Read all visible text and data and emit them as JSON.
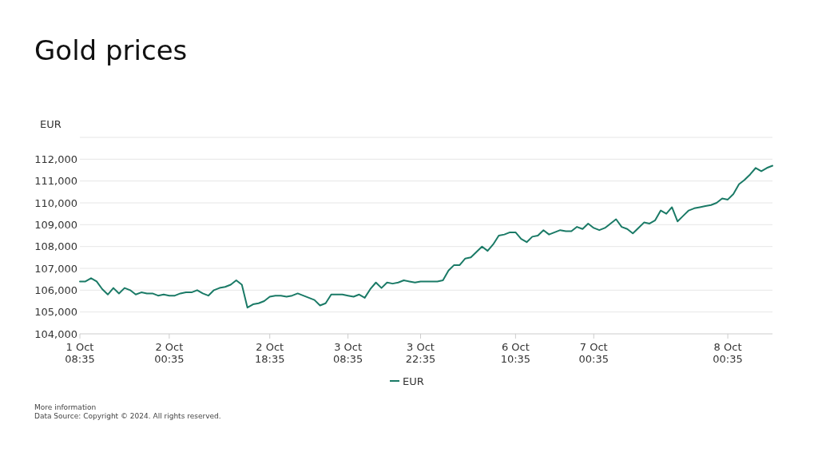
{
  "chart_data": {
    "type": "line",
    "title": "Gold prices",
    "ylabel": "EUR",
    "categories": [
      "1 Oct\n08:35",
      null,
      null,
      null,
      null,
      null,
      null,
      null,
      null,
      null,
      null,
      null,
      null,
      null,
      null,
      null,
      "2 Oct\n00:35",
      null,
      null,
      null,
      null,
      null,
      null,
      null,
      null,
      null,
      null,
      null,
      null,
      null,
      null,
      null,
      null,
      null,
      "2 Oct\n18:35",
      null,
      null,
      null,
      null,
      null,
      null,
      null,
      null,
      null,
      null,
      null,
      null,
      null,
      "3 Oct\n08:35",
      null,
      null,
      null,
      null,
      null,
      null,
      null,
      null,
      null,
      null,
      null,
      null,
      "3 Oct\n22:35",
      null,
      null,
      null,
      null,
      null,
      null,
      null,
      null,
      null,
      null,
      null,
      null,
      null,
      null,
      null,
      null,
      "6 Oct\n10:35",
      null,
      null,
      null,
      null,
      null,
      null,
      null,
      null,
      null,
      null,
      null,
      null,
      null,
      "7 Oct\n00:35",
      null,
      null,
      null,
      null,
      null,
      null,
      null,
      null,
      null,
      null,
      null,
      null,
      null,
      null,
      null,
      null,
      null,
      null,
      null,
      null,
      null,
      null,
      null,
      "8 Oct\n00:35",
      null,
      null,
      null,
      null,
      null,
      null,
      null,
      null
    ],
    "ylim": [
      104000,
      113000
    ],
    "yticks": [
      {
        "value": 104000,
        "label": "104,000"
      },
      {
        "value": 105000,
        "label": "105,000"
      },
      {
        "value": 106000,
        "label": "106,000"
      },
      {
        "value": 107000,
        "label": "107,000"
      },
      {
        "value": 108000,
        "label": "108,000"
      },
      {
        "value": 109000,
        "label": "109,000"
      },
      {
        "value": 110000,
        "label": "110,000"
      },
      {
        "value": 111000,
        "label": "111,000"
      },
      {
        "value": 112000,
        "label": "112,000"
      },
      {
        "value": 113000,
        "label": null
      }
    ],
    "grid": "y",
    "legend": "bottom",
    "marker": "none",
    "line_style": "solid",
    "series": [
      {
        "name": "EUR",
        "color": "#1a7a66",
        "values": [
          106400,
          106400,
          106550,
          106400,
          106050,
          105800,
          106100,
          105850,
          106100,
          106000,
          105800,
          105900,
          105850,
          105850,
          105750,
          105800,
          105750,
          105750,
          105850,
          105900,
          105900,
          106000,
          105850,
          105750,
          106000,
          106100,
          106150,
          106250,
          106450,
          106250,
          105200,
          105350,
          105400,
          105500,
          105700,
          105750,
          105750,
          105700,
          105750,
          105850,
          105750,
          105650,
          105550,
          105300,
          105400,
          105800,
          105800,
          105800,
          105750,
          105700,
          105800,
          105650,
          106050,
          106350,
          106100,
          106350,
          106300,
          106350,
          106450,
          106400,
          106350,
          106400,
          106400,
          106400,
          106400,
          106450,
          106900,
          107150,
          107150,
          107450,
          107500,
          107750,
          108000,
          107800,
          108100,
          108500,
          108550,
          108650,
          108650,
          108350,
          108200,
          108450,
          108500,
          108750,
          108550,
          108650,
          108750,
          108700,
          108700,
          108900,
          108800,
          109050,
          108850,
          108750,
          108850,
          109050,
          109250,
          108900,
          108800,
          108600,
          108850,
          109100,
          109050,
          109200,
          109650,
          109500,
          109800,
          109150,
          109400,
          109650,
          109750,
          109800,
          109850,
          109900,
          110000,
          110200,
          110150,
          110400,
          110850,
          111050,
          111300,
          111600,
          111450,
          111600,
          111700
        ]
      }
    ],
    "annotations": [
      "More information",
      "Data Source: Copyright © 2024. All rights reserved."
    ]
  }
}
